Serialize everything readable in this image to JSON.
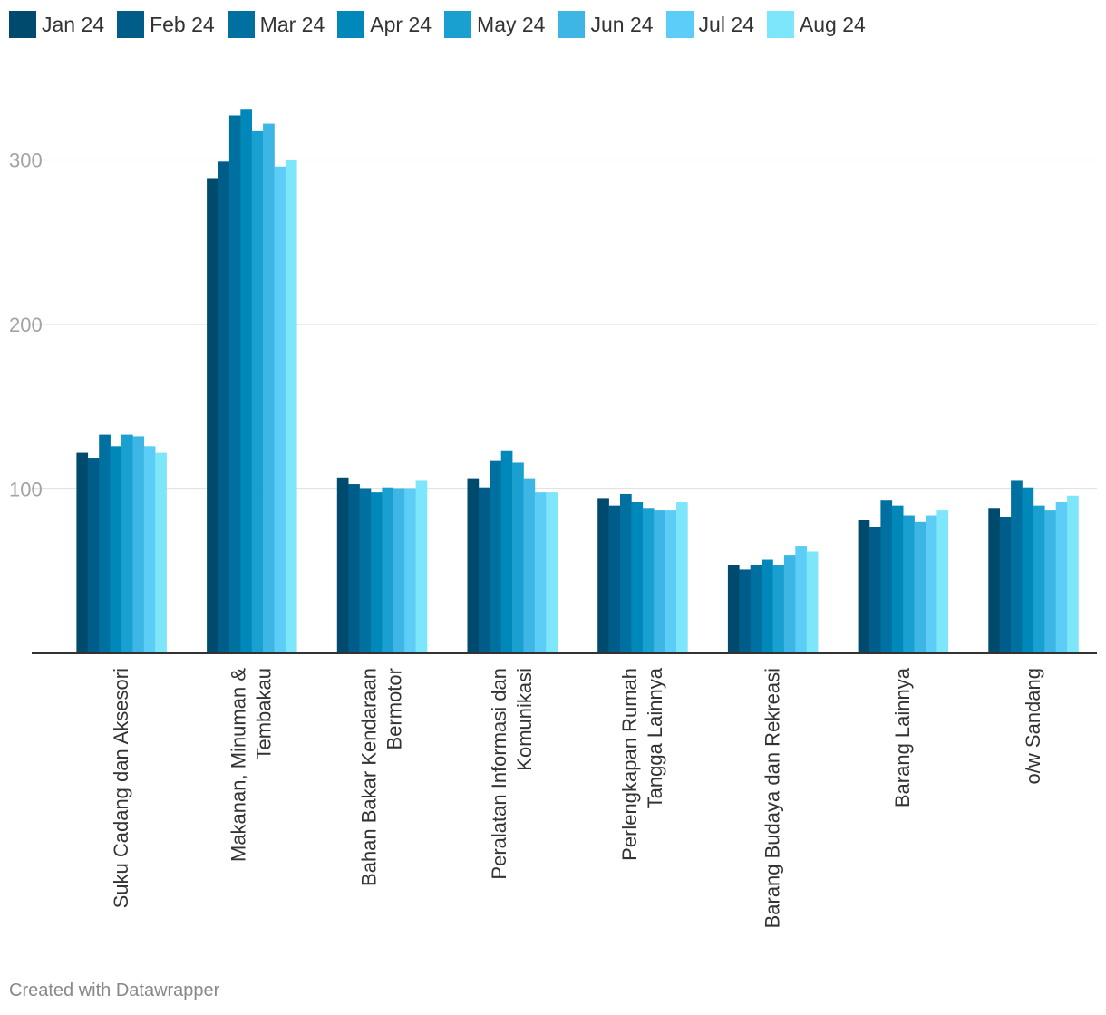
{
  "chart_data": {
    "type": "bar",
    "title": "",
    "xlabel": "",
    "ylabel": "",
    "ylim": [
      0,
      330
    ],
    "yticks": [
      100,
      200,
      300
    ],
    "grid": true,
    "legend_position": "top-left",
    "categories": [
      [
        "Suku Cadang dan Aksesori"
      ],
      [
        "Makanan, Minuman &",
        "Tembakau"
      ],
      [
        "Bahan Bakar Kendaraan",
        "Bermotor"
      ],
      [
        "Peralatan Informasi dan",
        "Komunikasi"
      ],
      [
        "Perlengkapan Rumah",
        "Tangga Lainnya"
      ],
      [
        "Barang Budaya dan Rekreasi"
      ],
      [
        "Barang Lainnya"
      ],
      [
        "o/w Sandang"
      ]
    ],
    "series": [
      {
        "name": "Jan 24",
        "color": "#004a6e",
        "values": [
          122,
          289,
          107,
          106,
          94,
          54,
          81,
          88
        ]
      },
      {
        "name": "Feb 24",
        "color": "#005c88",
        "values": [
          119,
          299,
          103,
          101,
          90,
          51,
          77,
          83
        ]
      },
      {
        "name": "Mar 24",
        "color": "#0070a1",
        "values": [
          133,
          327,
          100,
          117,
          97,
          54,
          93,
          105
        ]
      },
      {
        "name": "Apr 24",
        "color": "#0088ba",
        "values": [
          126,
          331,
          98,
          123,
          92,
          57,
          90,
          101
        ]
      },
      {
        "name": "May 24",
        "color": "#1aa0d0",
        "values": [
          133,
          318,
          101,
          116,
          88,
          54,
          84,
          90
        ]
      },
      {
        "name": "Jun 24",
        "color": "#3db6e6",
        "values": [
          132,
          322,
          100,
          106,
          87,
          60,
          80,
          87
        ]
      },
      {
        "name": "Jul 24",
        "color": "#5ccdf7",
        "values": [
          126,
          296,
          100,
          98,
          87,
          65,
          84,
          92
        ]
      },
      {
        "name": "Aug 24",
        "color": "#7de6fb",
        "values": [
          122,
          300,
          105,
          98,
          92,
          62,
          87,
          96
        ]
      }
    ]
  },
  "footer": "Created with Datawrapper"
}
